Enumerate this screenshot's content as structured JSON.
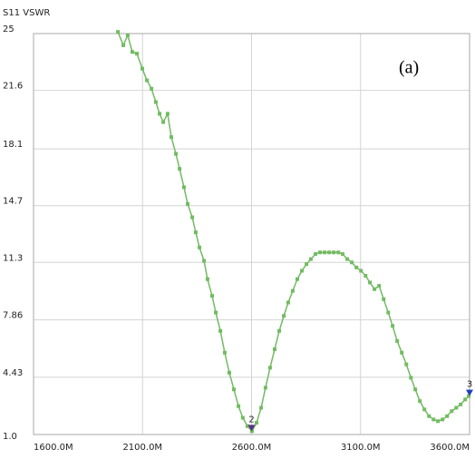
{
  "chart_data": {
    "type": "line",
    "title": "S11 VSWR",
    "annotation": "(a)",
    "x": [
      1987,
      2012,
      2032,
      2053,
      2074,
      2099,
      2120,
      2141,
      2161,
      2178,
      2195,
      2215,
      2232,
      2253,
      2270,
      2290,
      2307,
      2328,
      2344,
      2361,
      2382,
      2398,
      2419,
      2436,
      2457,
      2477,
      2498,
      2519,
      2540,
      2560,
      2581,
      2602,
      2623,
      2644,
      2664,
      2685,
      2706,
      2727,
      2748,
      2768,
      2789,
      2810,
      2831,
      2852,
      2872,
      2893,
      2914,
      2935,
      2956,
      2977,
      2998,
      3018,
      3039,
      3060,
      3081,
      3102,
      3123,
      3143,
      3164,
      3185,
      3206,
      3227,
      3247,
      3268,
      3289,
      3310,
      3331,
      3351,
      3372,
      3393,
      3414,
      3435,
      3455,
      3476,
      3497,
      3518,
      3539,
      3559,
      3580,
      3596
    ],
    "series": [
      {
        "color": "#72bb62",
        "values": [
          25.1,
          24.3,
          24.9,
          23.9,
          23.8,
          22.9,
          22.2,
          21.7,
          20.9,
          20.2,
          19.7,
          20.2,
          18.8,
          17.8,
          16.9,
          15.8,
          14.8,
          14.0,
          13.1,
          12.2,
          11.4,
          10.3,
          9.3,
          8.3,
          7.2,
          5.9,
          4.7,
          3.7,
          2.7,
          2.0,
          1.5,
          1.2,
          1.7,
          2.6,
          3.8,
          5.0,
          6.1,
          7.2,
          8.1,
          8.9,
          9.6,
          10.3,
          10.8,
          11.2,
          11.5,
          11.8,
          11.9,
          11.9,
          11.9,
          11.9,
          11.9,
          11.8,
          11.5,
          11.3,
          11.0,
          10.8,
          10.5,
          10.1,
          9.7,
          9.9,
          9.1,
          8.3,
          7.5,
          6.6,
          5.9,
          5.2,
          4.4,
          3.7,
          3.0,
          2.5,
          2.1,
          1.9,
          1.8,
          1.9,
          2.1,
          2.4,
          2.6,
          2.8,
          3.1,
          3.3
        ]
      }
    ],
    "markers": [
      {
        "label": "2",
        "x": 2600,
        "y": 1.2,
        "color": "#5a2d8c"
      },
      {
        "label": "3",
        "x": 3600,
        "y": 3.3,
        "color": "#1f3fbf"
      }
    ],
    "xlim": [
      1600,
      3600
    ],
    "xticks": [
      {
        "value": 1600,
        "label": "1600.0M"
      },
      {
        "value": 2100,
        "label": "2100.0M"
      },
      {
        "value": 2600,
        "label": "2600.0M"
      },
      {
        "value": 3100,
        "label": "3100.0M"
      },
      {
        "value": 3600,
        "label": "3600.0M"
      }
    ],
    "ylim": [
      1,
      25
    ],
    "yticks": [
      {
        "value": 1,
        "label": "1.0"
      },
      4.43,
      7.86,
      11.3,
      14.7,
      18.1,
      21.6,
      25
    ],
    "grid": true
  }
}
